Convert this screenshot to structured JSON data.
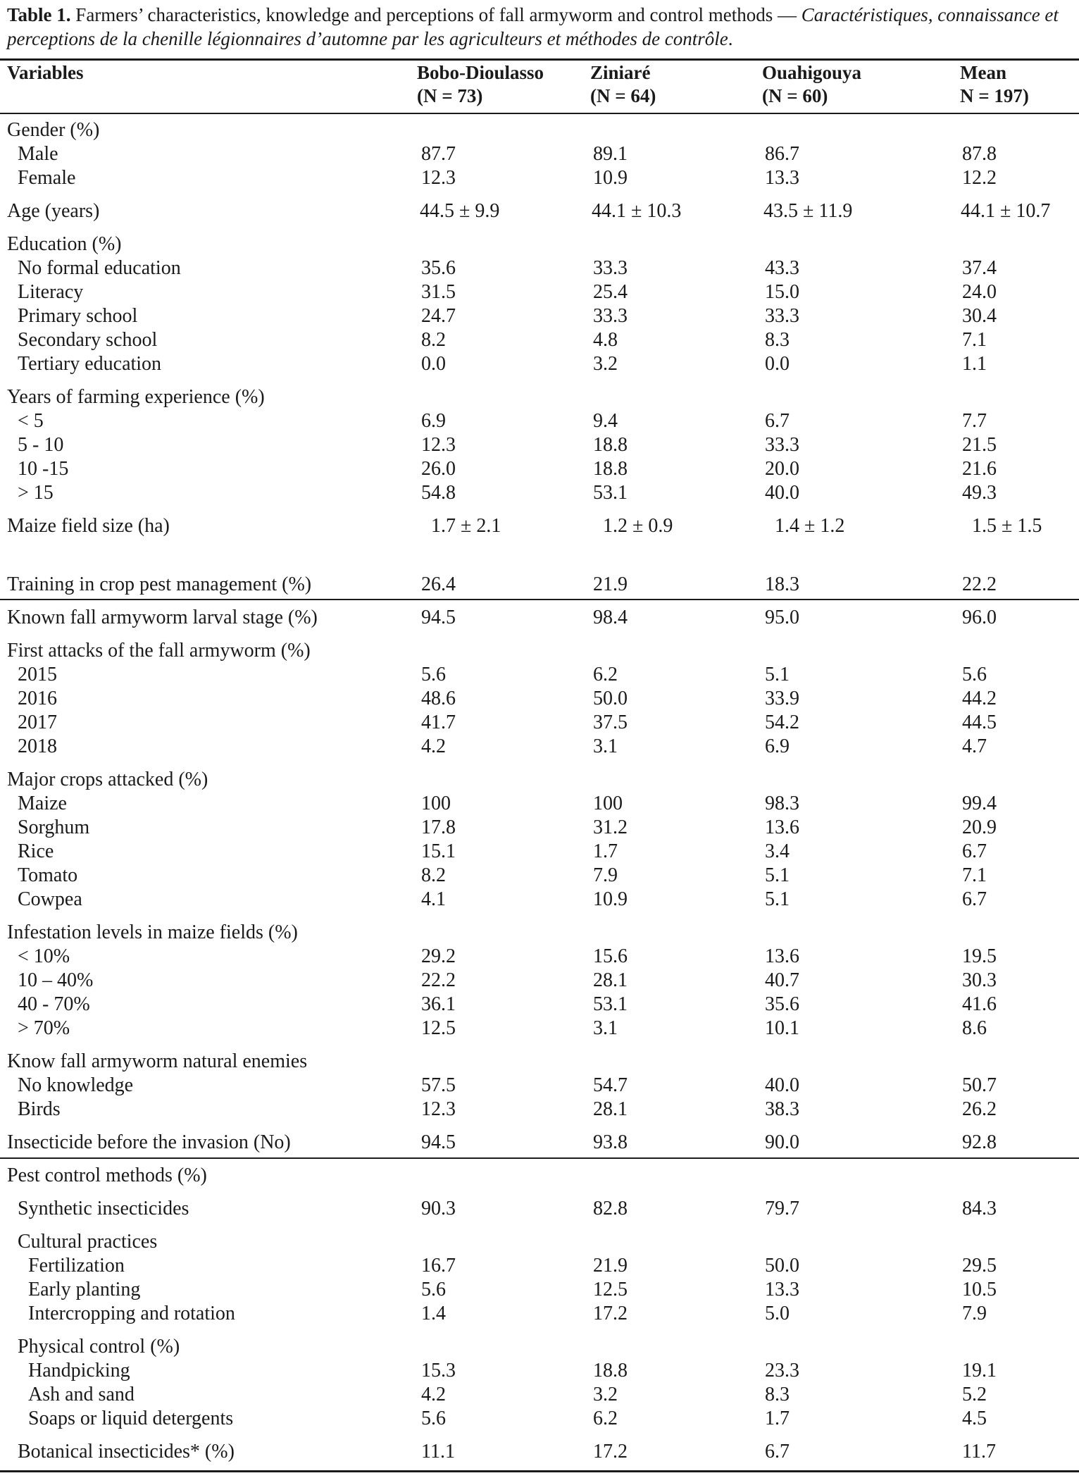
{
  "caption": {
    "label": "Table 1.",
    "text": " Farmers’ characteristics, knowledge and perceptions of fall armyworm and control methods — ",
    "italic_text": "Caractéristiques, connaissance et perceptions de la chenille légionnaires d’automne par les agriculteurs et méthodes de contrôle",
    "end": "."
  },
  "header": {
    "variables": "Variables",
    "columns": [
      {
        "name": "Bobo-Dioulasso",
        "n": "(N = 73)"
      },
      {
        "name": "Ziniaré",
        "n": "(N = 64)"
      },
      {
        "name": "Ouahigouya",
        "n": "(N = 60)"
      },
      {
        "name": "Mean",
        "n": "N = 197)"
      }
    ]
  },
  "rows": [
    {
      "label": "Gender (%)",
      "indent": 0,
      "values": [
        "",
        "",
        "",
        ""
      ]
    },
    {
      "label": "Male",
      "indent": 1,
      "values": [
        "87.7",
        "89.1",
        "86.7",
        "87.8"
      ]
    },
    {
      "label": "Female",
      "indent": 1,
      "values": [
        "12.3",
        "10.9",
        "13.3",
        "12.2"
      ]
    },
    {
      "label": "Age (years)",
      "indent": 0,
      "values": [
        "44.5 ± 9.9",
        "44.1 ± 10.3",
        "43.5 ± 11.9",
        "44.1 ± 10.7"
      ]
    },
    {
      "label": "Education (%)",
      "indent": 0,
      "values": [
        "",
        "",
        "",
        ""
      ]
    },
    {
      "label": "No formal education",
      "indent": 1,
      "values": [
        "35.6",
        "33.3",
        "43.3",
        "37.4"
      ]
    },
    {
      "label": "Literacy",
      "indent": 1,
      "values": [
        "31.5",
        "25.4",
        "15.0",
        "24.0"
      ]
    },
    {
      "label": "Primary school",
      "indent": 1,
      "values": [
        "24.7",
        "33.3",
        "33.3",
        "30.4"
      ]
    },
    {
      "label": "Secondary school",
      "indent": 1,
      "values": [
        "8.2",
        "4.8",
        "8.3",
        "7.1"
      ]
    },
    {
      "label": "Tertiary education",
      "indent": 1,
      "values": [
        "0.0",
        "3.2",
        "0.0",
        "1.1"
      ]
    },
    {
      "label": "Years of farming experience (%)",
      "indent": 0,
      "values": [
        "",
        "",
        "",
        ""
      ]
    },
    {
      "label": "< 5",
      "indent": 1,
      "values": [
        "6.9",
        "9.4",
        "6.7",
        "7.7"
      ]
    },
    {
      "label": "5 - 10",
      "indent": 1,
      "values": [
        "12.3",
        "18.8",
        "33.3",
        "21.5"
      ]
    },
    {
      "label": "10 -15",
      "indent": 1,
      "values": [
        "26.0",
        "18.8",
        "20.0",
        "21.6"
      ]
    },
    {
      "label": "> 15",
      "indent": 1,
      "values": [
        "54.8",
        "53.1",
        "40.0",
        "49.3"
      ]
    },
    {
      "label": "Maize field size (ha)",
      "indent": 0,
      "values": [
        "1.7 ± 2.1",
        "1.2 ± 0.9",
        "1.4 ± 1.2",
        "1.5 ± 1.5"
      ]
    },
    {
      "label": "Training in crop pest management (%)",
      "indent": 0,
      "values": [
        "26.4",
        "21.9",
        "18.3",
        "22.2"
      ]
    },
    {
      "label": "Known fall armyworm larval stage (%)",
      "indent": 0,
      "values": [
        "94.5",
        "98.4",
        "95.0",
        "96.0"
      ]
    },
    {
      "label": "First attacks of the fall armyworm (%)",
      "indent": 0,
      "values": [
        "",
        "",
        "",
        ""
      ]
    },
    {
      "label": "2015",
      "indent": 1,
      "values": [
        "5.6",
        "6.2",
        "5.1",
        "5.6"
      ]
    },
    {
      "label": "2016",
      "indent": 1,
      "values": [
        "48.6",
        "50.0",
        "33.9",
        "44.2"
      ]
    },
    {
      "label": "2017",
      "indent": 1,
      "values": [
        "41.7",
        "37.5",
        "54.2",
        "44.5"
      ]
    },
    {
      "label": "2018",
      "indent": 1,
      "values": [
        "4.2",
        "3.1",
        "6.9",
        "4.7"
      ]
    },
    {
      "label": "Major crops attacked (%)",
      "indent": 0,
      "values": [
        "",
        "",
        "",
        ""
      ]
    },
    {
      "label": "Maize",
      "indent": 1,
      "values": [
        "100",
        "100",
        "98.3",
        "99.4"
      ]
    },
    {
      "label": "Sorghum",
      "indent": 1,
      "values": [
        "17.8",
        "31.2",
        "13.6",
        "20.9"
      ]
    },
    {
      "label": "Rice",
      "indent": 1,
      "values": [
        "15.1",
        "1.7",
        "3.4",
        "6.7"
      ]
    },
    {
      "label": "Tomato",
      "indent": 1,
      "values": [
        "8.2",
        "7.9",
        "5.1",
        "7.1"
      ]
    },
    {
      "label": "Cowpea",
      "indent": 1,
      "values": [
        "4.1",
        "10.9",
        "5.1",
        "6.7"
      ]
    },
    {
      "label": "Infestation levels in maize fields (%)",
      "indent": 0,
      "values": [
        "",
        "",
        "",
        ""
      ]
    },
    {
      "label": "< 10%",
      "indent": 1,
      "values": [
        "29.2",
        "15.6",
        "13.6",
        "19.5"
      ]
    },
    {
      "label": "10 – 40%",
      "indent": 1,
      "values": [
        "22.2",
        "28.1",
        "40.7",
        "30.3"
      ]
    },
    {
      "label": "40 - 70%",
      "indent": 1,
      "values": [
        "36.1",
        "53.1",
        "35.6",
        "41.6"
      ]
    },
    {
      "label": "> 70%",
      "indent": 1,
      "values": [
        "12.5",
        "3.1",
        "10.1",
        "8.6"
      ]
    },
    {
      "label": "Know fall armyworm natural enemies",
      "indent": 0,
      "values": [
        "",
        "",
        "",
        ""
      ]
    },
    {
      "label": "No knowledge",
      "indent": 1,
      "values": [
        "57.5",
        "54.7",
        "40.0",
        "50.7"
      ]
    },
    {
      "label": "Birds",
      "indent": 1,
      "values": [
        "12.3",
        "28.1",
        "38.3",
        "26.2"
      ]
    },
    {
      "label": "Insecticide before the invasion (No)",
      "indent": 0,
      "values": [
        "94.5",
        "93.8",
        "90.0",
        "92.8"
      ]
    },
    {
      "label": "Pest control methods (%)",
      "indent": 0,
      "values": [
        "",
        "",
        "",
        ""
      ]
    },
    {
      "label": "Synthetic insecticides",
      "indent": 1,
      "values": [
        "90.3",
        "82.8",
        "79.7",
        "84.3"
      ]
    },
    {
      "label": "Cultural practices",
      "indent": 1,
      "values": [
        "",
        "",
        "",
        ""
      ]
    },
    {
      "label": "Fertilization",
      "indent": 2,
      "values": [
        "16.7",
        "21.9",
        "50.0",
        "29.5"
      ]
    },
    {
      "label": "Early planting",
      "indent": 2,
      "values": [
        "5.6",
        "12.5",
        "13.3",
        "10.5"
      ]
    },
    {
      "label": "Intercropping and rotation",
      "indent": 2,
      "values": [
        "1.4",
        "17.2",
        "5.0",
        "7.9"
      ]
    },
    {
      "label": "Physical control (%)",
      "indent": 1,
      "values": [
        "",
        "",
        "",
        ""
      ]
    },
    {
      "label": "Handpicking",
      "indent": 2,
      "values": [
        "15.3",
        "18.8",
        "23.3",
        "19.1"
      ]
    },
    {
      "label": "Ash and sand",
      "indent": 2,
      "values": [
        "4.2",
        "3.2",
        "8.3",
        "5.2"
      ]
    },
    {
      "label": "Soaps or liquid detergents",
      "indent": 2,
      "values": [
        "5.6",
        "6.2",
        "1.7",
        "4.5"
      ]
    },
    {
      "label": "Botanical insecticides* (%)",
      "indent": 1,
      "values": [
        "11.1",
        "17.2",
        "6.7",
        "11.7"
      ]
    }
  ]
}
